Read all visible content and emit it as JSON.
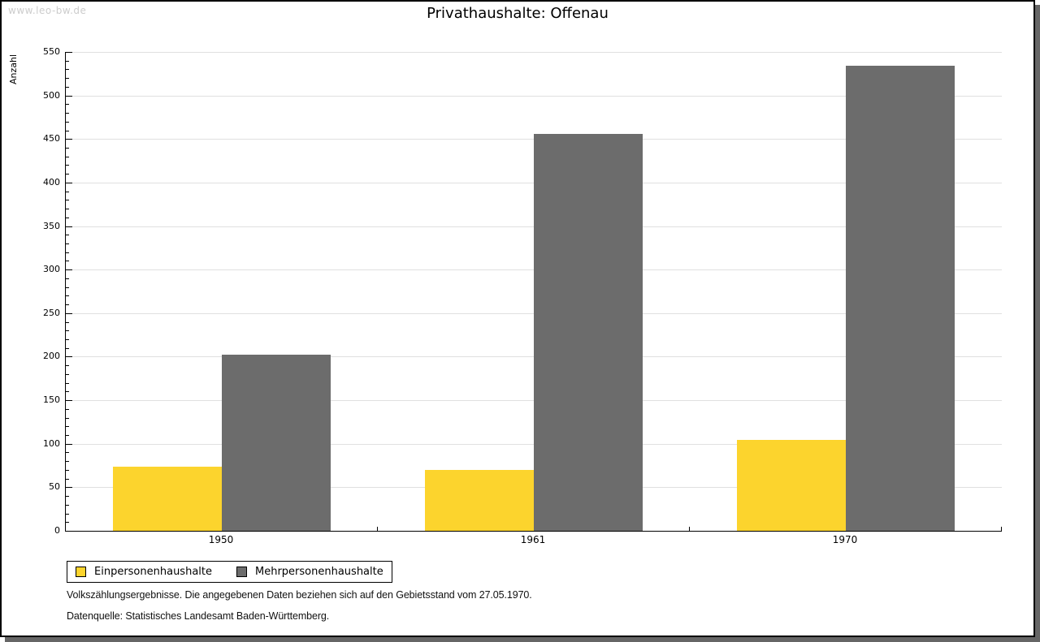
{
  "watermark": "www.leo-bw.de",
  "chart_data": {
    "type": "bar",
    "title": "Privathaushalte: Offenau",
    "xlabel": "",
    "ylabel": "Anzahl",
    "categories": [
      "1950",
      "1961",
      "1970"
    ],
    "series": [
      {
        "name": "Einpersonenhaushalte",
        "color": "#FCD42D",
        "values": [
          74,
          70,
          104
        ]
      },
      {
        "name": "Mehrpersonenhaushalte",
        "color": "#6C6C6C",
        "values": [
          202,
          456,
          534
        ]
      }
    ],
    "ylim": [
      0,
      550
    ],
    "ytick_step": 50,
    "minor_tick_step": 10,
    "grid": true,
    "legend_position": "bottom-left",
    "grid_color": "#e0e0e0",
    "axis_color": "#000000"
  },
  "footnotes": [
    "Volkszählungsergebnisse. Die angegebenen Daten beziehen sich auf den Gebietsstand vom 27.05.1970.",
    "Datenquelle: Statistisches Landesamt Baden-Württemberg."
  ]
}
